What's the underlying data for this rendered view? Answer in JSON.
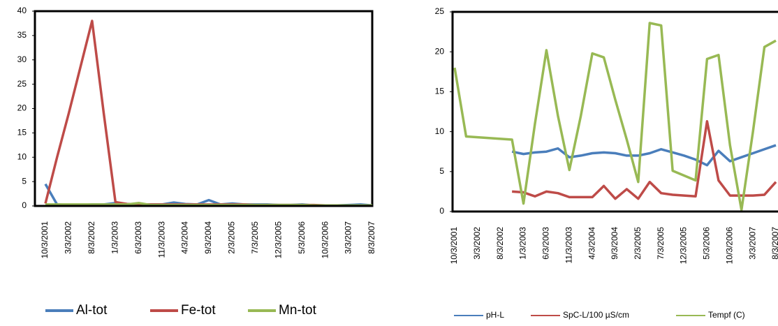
{
  "chart_data": [
    {
      "type": "line",
      "categories": [
        "10/3/2001",
        null,
        "3/3/2002",
        null,
        "8/3/2002",
        null,
        "1/3/2003",
        null,
        "6/3/2003",
        null,
        "11/3/2003",
        null,
        "4/3/2004",
        null,
        "9/3/2004",
        null,
        "2/3/2005",
        null,
        "7/3/2005",
        null,
        "12/3/2005",
        null,
        "5/3/2006",
        null,
        "10/3/2006",
        null,
        "3/3/2007",
        null,
        "8/3/2007"
      ],
      "series": [
        {
          "name": "Al-tot",
          "color": "#4a7ebb",
          "values": [
            4.5,
            0.3,
            0.2,
            0.2,
            0.3,
            0.3,
            0.6,
            0.4,
            0.3,
            0.3,
            0.3,
            0.7,
            0.4,
            0.3,
            1.2,
            0.3,
            0.5,
            0.3,
            0.3,
            0.3,
            0.2,
            0.2,
            0.3,
            0.1,
            0.1,
            0.1,
            0.2,
            0.3,
            0.1
          ]
        },
        {
          "name": "Fe-tot",
          "color": "#be4b48",
          "values": [
            0.5,
            10,
            19,
            28.5,
            38,
            19,
            0.8,
            0.4,
            0.3,
            0.3,
            0.3,
            0.3,
            0.3,
            0.3,
            0.3,
            0.3,
            0.3,
            0.3,
            0.2,
            0.2,
            0.2,
            0.2,
            0.2,
            0.2,
            0.1,
            0.1,
            0.1,
            0.1,
            0.1
          ]
        },
        {
          "name": "Mn-tot",
          "color": "#98b954",
          "values": [
            0.3,
            0.3,
            0.3,
            0.3,
            0.3,
            0.3,
            0.3,
            0.3,
            0.6,
            0.2,
            0.2,
            0.2,
            0.2,
            0.2,
            0.2,
            0.2,
            0.2,
            0.2,
            0.2,
            0.2,
            0.2,
            0.2,
            0.2,
            0.1,
            0.1,
            0.1,
            0.1,
            0.1,
            0.1
          ]
        }
      ],
      "ylim": [
        0,
        40
      ],
      "yticks": [
        0,
        5,
        10,
        15,
        20,
        25,
        30,
        35,
        40
      ]
    },
    {
      "type": "line",
      "categories": [
        "10/3/2001",
        null,
        "3/3/2002",
        null,
        "8/3/2002",
        null,
        "1/3/2003",
        null,
        "6/3/2003",
        null,
        "11/3/2003",
        null,
        "4/3/2004",
        null,
        "9/3/2004",
        null,
        "2/3/2005",
        null,
        "7/3/2005",
        null,
        "12/3/2005",
        null,
        "5/3/2006",
        null,
        "10/3/2006",
        null,
        "3/3/2007",
        null,
        "8/3/2007"
      ],
      "series": [
        {
          "name": "pH-L",
          "color": "#4a7ebb",
          "values": [
            null,
            null,
            null,
            null,
            null,
            7.5,
            7.2,
            7.4,
            7.5,
            7.9,
            6.8,
            7.0,
            7.3,
            7.4,
            7.3,
            7.0,
            7.0,
            7.3,
            7.8,
            7.4,
            7.0,
            6.5,
            5.8,
            7.6,
            6.3,
            6.8,
            7.3,
            7.8,
            8.3
          ]
        },
        {
          "name": "SpC-L/100 µS/cm",
          "color": "#be4b48",
          "values": [
            null,
            null,
            null,
            null,
            null,
            2.5,
            2.4,
            1.9,
            2.5,
            2.3,
            1.8,
            1.8,
            1.8,
            3.2,
            1.6,
            2.8,
            1.6,
            3.7,
            2.3,
            2.1,
            2.0,
            1.9,
            11.3,
            3.9,
            2.0,
            2.0,
            2.0,
            2.1,
            3.7
          ]
        },
        {
          "name": "Tempf (C)",
          "color": "#98b954",
          "values": [
            18,
            9.4,
            9.3,
            9.2,
            9.1,
            9.0,
            1.0,
            11,
            20.2,
            12,
            5.2,
            12,
            19.8,
            19.3,
            14,
            9,
            3.7,
            23.6,
            23.3,
            5.1,
            4.5,
            3.9,
            19.1,
            19.6,
            8.3,
            0.2,
            10,
            20.6,
            21.4
          ]
        }
      ],
      "ylim": [
        0,
        25
      ],
      "yticks": [
        0,
        5,
        10,
        15,
        20,
        25
      ]
    }
  ]
}
